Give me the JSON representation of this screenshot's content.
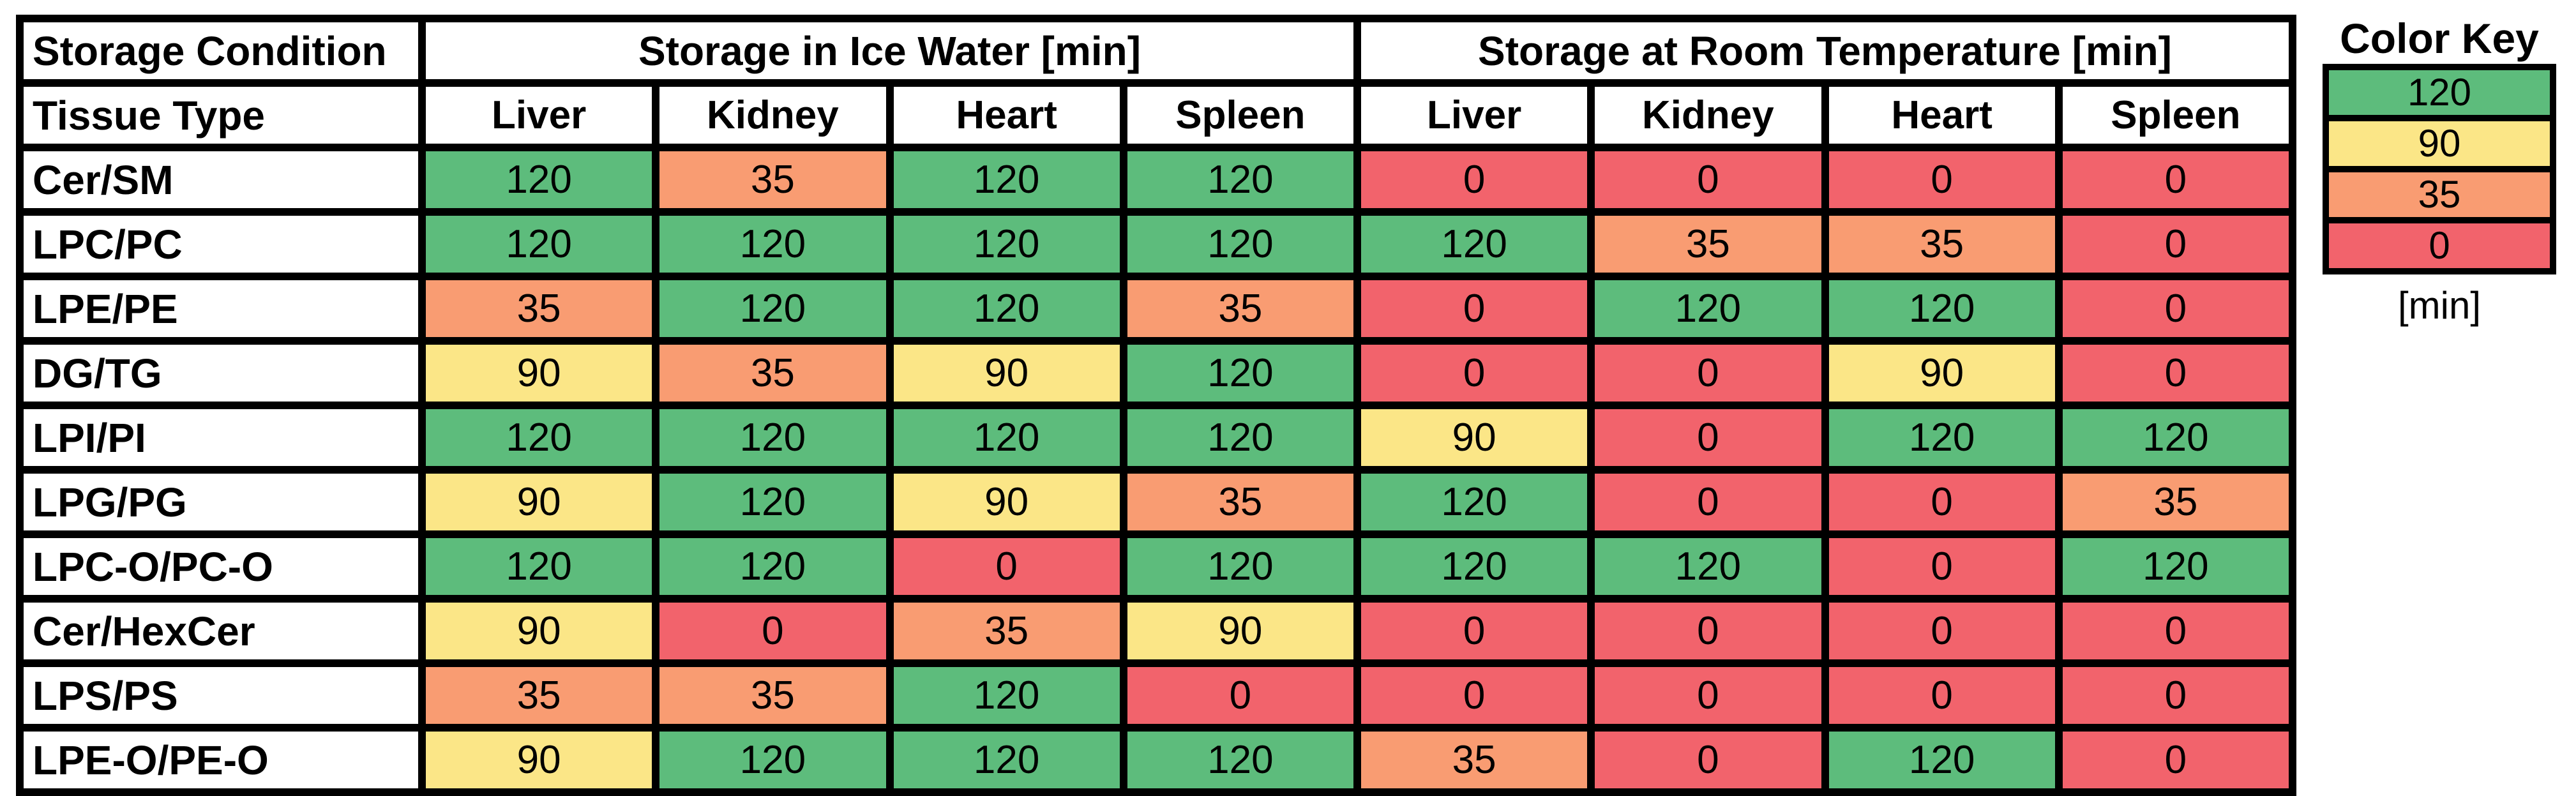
{
  "chart_data": {
    "type": "heatmap",
    "corner": {
      "top": "Storage Condition",
      "bottom": "Tissue Type"
    },
    "sections": [
      {
        "label": "Storage in Ice Water [min]",
        "columns": [
          "Liver",
          "Kidney",
          "Heart",
          "Spleen"
        ]
      },
      {
        "label": "Storage at Room Temperature [min]",
        "columns": [
          "Liver",
          "Kidney",
          "Heart",
          "Spleen"
        ]
      }
    ],
    "rows": [
      {
        "tissue": "Cer/SM",
        "values": [
          120,
          35,
          120,
          120,
          0,
          0,
          0,
          0
        ]
      },
      {
        "tissue": "LPC/PC",
        "values": [
          120,
          120,
          120,
          120,
          120,
          35,
          35,
          0
        ]
      },
      {
        "tissue": "LPE/PE",
        "values": [
          35,
          120,
          120,
          35,
          0,
          120,
          120,
          0
        ]
      },
      {
        "tissue": "DG/TG",
        "values": [
          90,
          35,
          90,
          120,
          0,
          0,
          90,
          0
        ]
      },
      {
        "tissue": "LPI/PI",
        "values": [
          120,
          120,
          120,
          120,
          90,
          0,
          120,
          120
        ]
      },
      {
        "tissue": "LPG/PG",
        "values": [
          90,
          120,
          90,
          35,
          120,
          0,
          0,
          35
        ]
      },
      {
        "tissue": "LPC-O/PC-O",
        "values": [
          120,
          120,
          0,
          120,
          120,
          120,
          0,
          120
        ]
      },
      {
        "tissue": "Cer/HexCer",
        "values": [
          90,
          0,
          35,
          90,
          0,
          0,
          0,
          0
        ]
      },
      {
        "tissue": "LPS/PS",
        "values": [
          35,
          35,
          120,
          0,
          0,
          0,
          0,
          0
        ]
      },
      {
        "tissue": "LPE-O/PE-O",
        "values": [
          90,
          120,
          120,
          120,
          35,
          0,
          120,
          0
        ]
      }
    ],
    "value_colors": {
      "120": "#5DBC7C",
      "90": "#FBE687",
      "35": "#F99C72",
      "0": "#F2636C"
    },
    "legend": {
      "title": "Color Key",
      "levels": [
        120,
        90,
        35,
        0
      ],
      "unit": "[min]"
    }
  }
}
